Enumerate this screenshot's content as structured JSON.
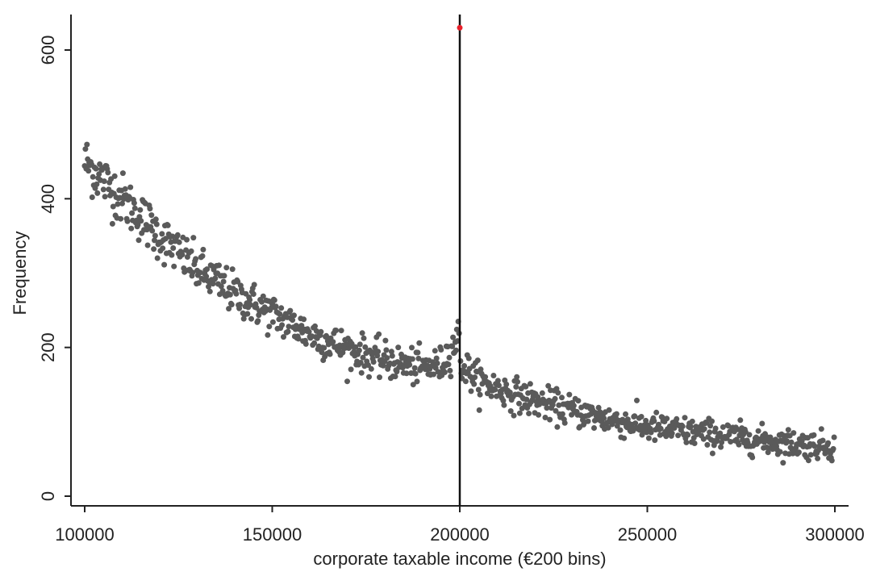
{
  "chart_data": {
    "type": "scatter",
    "title": "",
    "xlabel": "corporate taxable income (€200 bins)",
    "ylabel": "Frequency",
    "xlim": [
      96000,
      304000
    ],
    "ylim": [
      -12,
      650
    ],
    "xticks": [
      100000,
      150000,
      200000,
      250000,
      300000
    ],
    "xtick_labels": [
      "100000",
      "150000",
      "200000",
      "250000",
      "300000"
    ],
    "yticks": [
      0,
      200,
      400,
      600
    ],
    "ytick_labels": [
      "0",
      "200",
      "400",
      "600"
    ],
    "grid": false,
    "legend": "none",
    "bin_width": 200,
    "reference_line_x": 200000,
    "point_color": "#5a5a5a",
    "highlight_color": "#e8202a",
    "highlight_point": {
      "x": 200000,
      "y": 630
    },
    "binned_trend": [
      {
        "x": 100000,
        "y": 450
      },
      {
        "x": 110000,
        "y": 400
      },
      {
        "x": 120000,
        "y": 350
      },
      {
        "x": 130000,
        "y": 305
      },
      {
        "x": 140000,
        "y": 272
      },
      {
        "x": 150000,
        "y": 245
      },
      {
        "x": 160000,
        "y": 218
      },
      {
        "x": 170000,
        "y": 198
      },
      {
        "x": 180000,
        "y": 182
      },
      {
        "x": 190000,
        "y": 172
      },
      {
        "x": 195000,
        "y": 176
      },
      {
        "x": 199800,
        "y": 215
      },
      {
        "x": 200200,
        "y": 178
      },
      {
        "x": 205000,
        "y": 155
      },
      {
        "x": 210000,
        "y": 145
      },
      {
        "x": 220000,
        "y": 128
      },
      {
        "x": 230000,
        "y": 115
      },
      {
        "x": 240000,
        "y": 103
      },
      {
        "x": 250000,
        "y": 93
      },
      {
        "x": 260000,
        "y": 87
      },
      {
        "x": 270000,
        "y": 82
      },
      {
        "x": 280000,
        "y": 75
      },
      {
        "x": 290000,
        "y": 70
      },
      {
        "x": 300000,
        "y": 67
      }
    ],
    "noise_sd": 11
  }
}
